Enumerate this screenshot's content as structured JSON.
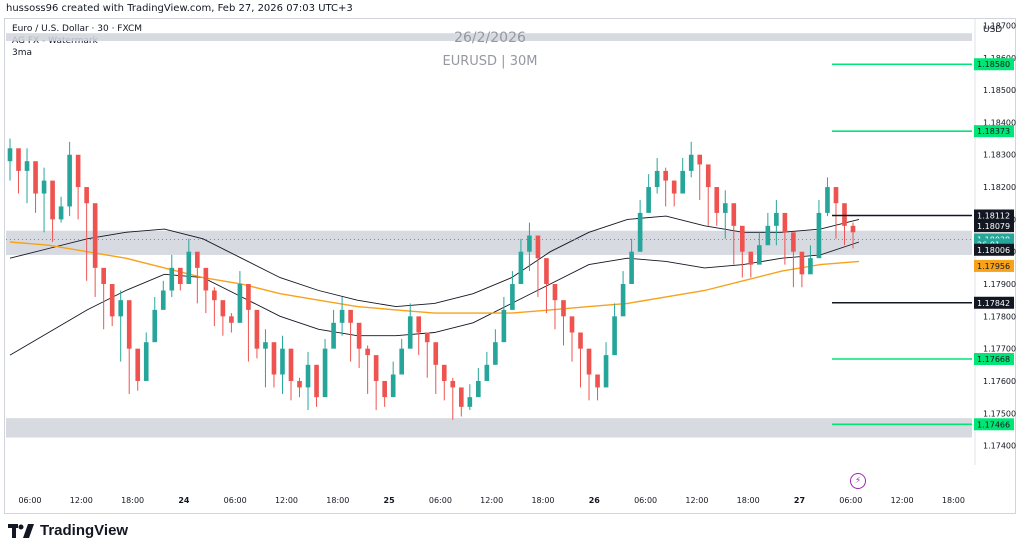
{
  "header": {
    "created_by": "hussoss96 created with TradingView.com, Feb 27, 2026 07:03 UTC+3",
    "symbol_line": "Euro / U.S. Dollar · 30 · FXCM",
    "indicator_line": "AG FX - Watermark",
    "ma_label": "3ma"
  },
  "watermark": {
    "date": "26/2/2026",
    "symbol": "EURUSD | 30M"
  },
  "axis": {
    "currency": "USD"
  },
  "brand": {
    "name": "TradingView"
  },
  "chart_data": {
    "type": "candlestick",
    "ylim": [
      1.1734,
      1.1872
    ],
    "y_ticks": [
      "1.18700",
      "1.18600",
      "1.18500",
      "1.18400",
      "1.18300",
      "1.18200",
      "1.18100",
      "1.18000",
      "1.17900",
      "1.17800",
      "1.17700",
      "1.17600",
      "1.17500",
      "1.17400"
    ],
    "x_ticks": [
      {
        "label": "06:00",
        "bold": false
      },
      {
        "label": "12:00",
        "bold": false
      },
      {
        "label": "18:00",
        "bold": false
      },
      {
        "label": "24",
        "bold": true
      },
      {
        "label": "06:00",
        "bold": false
      },
      {
        "label": "12:00",
        "bold": false
      },
      {
        "label": "18:00",
        "bold": false
      },
      {
        "label": "25",
        "bold": true
      },
      {
        "label": "06:00",
        "bold": false
      },
      {
        "label": "12:00",
        "bold": false
      },
      {
        "label": "18:00",
        "bold": false
      },
      {
        "label": "26",
        "bold": true
      },
      {
        "label": "06:00",
        "bold": false
      },
      {
        "label": "12:00",
        "bold": false
      },
      {
        "label": "18:00",
        "bold": false
      },
      {
        "label": "27",
        "bold": true
      },
      {
        "label": "06:00",
        "bold": false
      },
      {
        "label": "12:00",
        "bold": false
      },
      {
        "label": "18:00",
        "bold": false
      }
    ],
    "candle_path": [
      1.1832,
      1.1825,
      1.1828,
      1.1818,
      1.1822,
      1.181,
      1.1814,
      1.183,
      1.182,
      1.1815,
      1.1795,
      1.179,
      1.178,
      1.1785,
      1.177,
      1.176,
      1.1772,
      1.1782,
      1.1788,
      1.1795,
      1.179,
      1.18,
      1.1795,
      1.1788,
      1.1785,
      1.178,
      1.1778,
      1.179,
      1.1782,
      1.177,
      1.1772,
      1.1762,
      1.177,
      1.176,
      1.1758,
      1.1765,
      1.1755,
      1.177,
      1.1778,
      1.1782,
      1.1778,
      1.177,
      1.1768,
      1.176,
      1.1755,
      1.1762,
      1.177,
      1.178,
      1.1775,
      1.1772,
      1.1765,
      1.176,
      1.1758,
      1.1752,
      1.1755,
      1.176,
      1.1765,
      1.1772,
      1.1782,
      1.179,
      1.18,
      1.1805,
      1.1798,
      1.179,
      1.1785,
      1.178,
      1.1775,
      1.177,
      1.1762,
      1.1758,
      1.1768,
      1.178,
      1.179,
      1.18,
      1.1812,
      1.182,
      1.1825,
      1.1822,
      1.1818,
      1.1825,
      1.183,
      1.1827,
      1.182,
      1.1812,
      1.1815,
      1.1808,
      1.18,
      1.1796,
      1.1802,
      1.1808,
      1.1812,
      1.1806,
      1.18,
      1.1793,
      1.1798,
      1.1812,
      1.182,
      1.1815,
      1.1808,
      1.1806
    ],
    "candle_highs": [
      1.1835,
      1.1828,
      1.1832,
      1.1822,
      1.1826,
      1.1814,
      1.1817,
      1.1834,
      1.1824,
      1.1818,
      1.1798,
      1.1794,
      1.1784,
      1.1788,
      1.1774,
      1.1764,
      1.1775,
      1.1786,
      1.1791,
      1.1799,
      1.1793,
      1.1804,
      1.1798,
      1.1792,
      1.1789,
      1.1784,
      1.1781,
      1.1794,
      1.1786,
      1.1774,
      1.1776,
      1.1766,
      1.1774,
      1.1764,
      1.1761,
      1.1769,
      1.1759,
      1.1773,
      1.1782,
      1.1786,
      1.1781,
      1.1773,
      1.1771,
      1.1764,
      1.1759,
      1.1766,
      1.1773,
      1.1784,
      1.1779,
      1.1775,
      1.1768,
      1.1764,
      1.1761,
      1.1756,
      1.1759,
      1.1764,
      1.1769,
      1.1776,
      1.1786,
      1.1794,
      1.1804,
      1.1809,
      1.1801,
      1.1794,
      1.1789,
      1.1784,
      1.1779,
      1.1774,
      1.1766,
      1.1762,
      1.1772,
      1.1784,
      1.1794,
      1.1804,
      1.1816,
      1.1824,
      1.1829,
      1.1826,
      1.1822,
      1.1829,
      1.1834,
      1.183,
      1.1824,
      1.1816,
      1.1819,
      1.1812,
      1.1804,
      1.18,
      1.1806,
      1.1812,
      1.1816,
      1.181,
      1.1804,
      1.1797,
      1.1802,
      1.1816,
      1.1823,
      1.1818,
      1.1811,
      1.1809
    ],
    "candle_lows": [
      1.1822,
      1.1818,
      1.1815,
      1.1812,
      1.1806,
      1.1803,
      1.1809,
      1.1811,
      1.181,
      1.1791,
      1.1786,
      1.1776,
      1.1777,
      1.1766,
      1.1756,
      1.1757,
      1.1768,
      1.1779,
      1.1786,
      1.1786,
      1.1788,
      1.1791,
      1.1784,
      1.1781,
      1.1777,
      1.1774,
      1.1775,
      1.1778,
      1.1766,
      1.1767,
      1.1758,
      1.1758,
      1.1756,
      1.1754,
      1.1755,
      1.1751,
      1.1752,
      1.1766,
      1.1774,
      1.1774,
      1.1766,
      1.1764,
      1.1756,
      1.1751,
      1.1752,
      1.1758,
      1.1766,
      1.1771,
      1.1768,
      1.1761,
      1.1756,
      1.1754,
      1.1748,
      1.1749,
      1.1751,
      1.1756,
      1.1761,
      1.1768,
      1.1778,
      1.1786,
      1.1796,
      1.1794,
      1.1786,
      1.1781,
      1.1776,
      1.1771,
      1.1766,
      1.1758,
      1.1754,
      1.1754,
      1.1764,
      1.1776,
      1.1786,
      1.1796,
      1.1808,
      1.1816,
      1.1818,
      1.1814,
      1.1814,
      1.1821,
      1.1823,
      1.1816,
      1.1808,
      1.1808,
      1.1804,
      1.1796,
      1.1792,
      1.1792,
      1.1798,
      1.1804,
      1.1802,
      1.1796,
      1.1789,
      1.1789,
      1.1794,
      1.1808,
      1.1811,
      1.1804,
      1.1802,
      1.1801
    ],
    "orange_ma": [
      1.1803,
      1.1802,
      1.18,
      1.1798,
      1.1795,
      1.1792,
      1.179,
      1.1787,
      1.1785,
      1.1783,
      1.1782,
      1.1781,
      1.1781,
      1.1781,
      1.1782,
      1.1783,
      1.1784,
      1.1786,
      1.1788,
      1.1791,
      1.1794,
      1.1796,
      1.1797
    ],
    "upper_band": [
      1.1798,
      1.1801,
      1.1804,
      1.1806,
      1.1807,
      1.1804,
      1.1798,
      1.1792,
      1.1788,
      1.1785,
      1.1783,
      1.1784,
      1.1787,
      1.1792,
      1.18,
      1.1806,
      1.181,
      1.1811,
      1.1808,
      1.1806,
      1.1806,
      1.1807,
      1.181
    ],
    "lower_band": [
      1.1768,
      1.1775,
      1.1782,
      1.1788,
      1.1793,
      1.1792,
      1.1786,
      1.178,
      1.1776,
      1.1774,
      1.1774,
      1.1775,
      1.1778,
      1.1784,
      1.179,
      1.1796,
      1.1798,
      1.1797,
      1.1795,
      1.1796,
      1.1798,
      1.1799,
      1.1803
    ],
    "green_levels": [
      {
        "value": 1.1858,
        "label": "1.18580"
      },
      {
        "value": 1.18373,
        "label": "1.18373"
      },
      {
        "value": 1.17668,
        "label": "1.17668"
      },
      {
        "value": 1.17466,
        "label": "1.17466"
      }
    ],
    "black_levels": [
      {
        "value": 1.18112,
        "label": "1.18112"
      },
      {
        "value": 1.17842,
        "label": "1.17842"
      }
    ],
    "zones": [
      {
        "from": 1.18676,
        "to": 1.18652
      },
      {
        "from": 1.18065,
        "to": 1.1799
      },
      {
        "from": 1.17485,
        "to": 1.17425
      }
    ],
    "price_tags": [
      {
        "label": "1.18079",
        "bg": "#131722",
        "fg": "#ffffff",
        "value": 1.18079
      },
      {
        "label": "1.18038",
        "bg": "#26a69a",
        "fg": "#ffffff",
        "value": 1.18038
      },
      {
        "label": "26:01",
        "bg": "#26a69a",
        "fg": "#ffffff",
        "value": 1.18022
      },
      {
        "label": "1.18006",
        "bg": "#131722",
        "fg": "#ffffff",
        "value": 1.18006
      },
      {
        "label": "1.17956",
        "bg": "#f7a21b",
        "fg": "#131722",
        "value": 1.17956
      }
    ],
    "colors": {
      "up": "#26a69a",
      "down": "#ef5350",
      "ma": "#f7a21b",
      "band": "#131722",
      "level_green": "#00e676",
      "zone": "#d1d4dc"
    }
  }
}
